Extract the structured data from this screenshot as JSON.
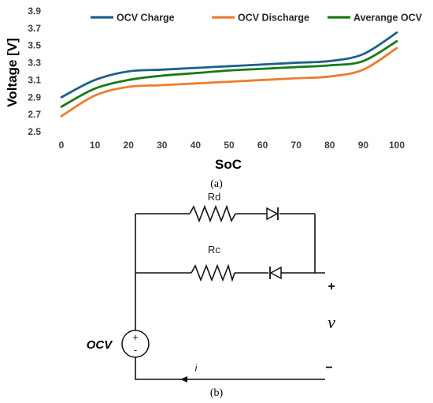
{
  "chart_data": {
    "type": "line",
    "x": [
      0,
      10,
      20,
      30,
      40,
      50,
      60,
      70,
      80,
      90,
      100
    ],
    "series": [
      {
        "name": "OCV Charge",
        "color": "#1f5f8b",
        "values": [
          2.9,
          3.1,
          3.2,
          3.22,
          3.24,
          3.26,
          3.28,
          3.3,
          3.32,
          3.4,
          3.65
        ]
      },
      {
        "name": "OCV Discharge",
        "color": "#ed7d31",
        "values": [
          2.68,
          2.92,
          3.02,
          3.04,
          3.06,
          3.08,
          3.1,
          3.12,
          3.14,
          3.22,
          3.47
        ]
      },
      {
        "name": "Averange OCV",
        "color": "#1a7a1a",
        "values": [
          2.79,
          3.0,
          3.1,
          3.15,
          3.18,
          3.21,
          3.23,
          3.25,
          3.27,
          3.32,
          3.55
        ]
      }
    ],
    "xlabel": "SoC",
    "ylabel": "Voltage [V]",
    "xticks": [
      "0",
      "10",
      "20",
      "30",
      "40",
      "50",
      "60",
      "70",
      "80",
      "90",
      "100"
    ],
    "yticks": [
      "2.5",
      "2.7",
      "2.9",
      "3.1",
      "3.3",
      "3.5",
      "3.7",
      "3.9"
    ],
    "xlim": [
      0,
      100
    ],
    "ylim": [
      2.5,
      3.9
    ],
    "grid": false,
    "legend": "top"
  },
  "captions": {
    "a": "(a)",
    "b": "(b)"
  },
  "circuit": {
    "rd_label": "Rd",
    "rc_label": "Rc",
    "source_label": "OCV",
    "source_plus": "+",
    "source_minus": "-",
    "current_label": "i",
    "voltage_label": "v",
    "plus_sign": "+",
    "minus_sign": "−"
  }
}
